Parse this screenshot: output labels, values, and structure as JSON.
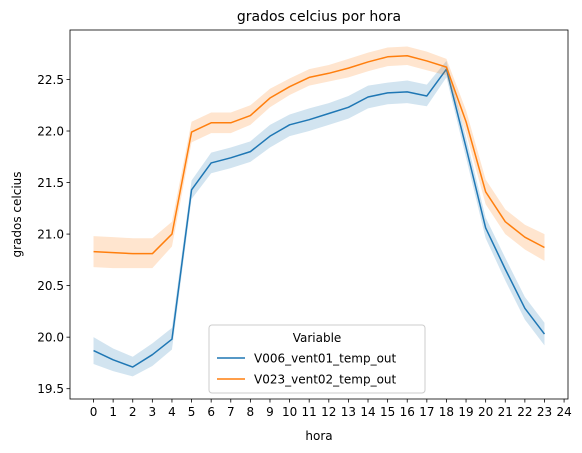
{
  "chart_data": {
    "type": "line",
    "title": "grados celcius por hora",
    "xlabel": "hora",
    "ylabel": "grados celcius",
    "xlim": [
      -1.2,
      24.2
    ],
    "ylim": [
      19.4,
      22.98
    ],
    "x_ticks": [
      "0",
      "1",
      "2",
      "3",
      "4",
      "5",
      "6",
      "7",
      "8",
      "9",
      "10",
      "11",
      "12",
      "13",
      "14",
      "15",
      "16",
      "17",
      "18",
      "19",
      "20",
      "21",
      "22",
      "23",
      "24"
    ],
    "y_ticks": [
      "19.5",
      "20.0",
      "20.5",
      "21.0",
      "21.5",
      "22.0",
      "22.5"
    ],
    "grid": false,
    "legend": {
      "title": "Variable",
      "placement": "lower-center"
    },
    "series": [
      {
        "name": "V006_vent01_temp_out",
        "color": "#1f77b4",
        "x": [
          0,
          1,
          2,
          3,
          4,
          5,
          6,
          7,
          8,
          9,
          10,
          11,
          12,
          13,
          14,
          15,
          16,
          17,
          18,
          19,
          20,
          21,
          22,
          23
        ],
        "values": [
          19.87,
          19.78,
          19.71,
          19.83,
          19.98,
          21.43,
          21.69,
          21.74,
          21.8,
          21.95,
          22.06,
          22.11,
          22.17,
          22.23,
          22.33,
          22.37,
          22.38,
          22.34,
          22.6,
          21.84,
          21.06,
          20.66,
          20.28,
          20.03
        ],
        "ci_low": [
          19.74,
          19.67,
          19.62,
          19.72,
          19.88,
          21.34,
          21.59,
          21.64,
          21.7,
          21.84,
          21.95,
          22.0,
          22.06,
          22.12,
          22.22,
          22.26,
          22.27,
          22.24,
          22.52,
          21.74,
          20.96,
          20.55,
          20.17,
          19.92
        ],
        "ci_high": [
          20.0,
          19.89,
          19.81,
          19.94,
          20.09,
          21.52,
          21.79,
          21.84,
          21.9,
          22.06,
          22.16,
          22.22,
          22.27,
          22.34,
          22.44,
          22.47,
          22.49,
          22.45,
          22.68,
          21.94,
          21.16,
          20.77,
          20.39,
          20.14
        ]
      },
      {
        "name": "V023_vent02_temp_out",
        "color": "#ff7f0e",
        "x": [
          0,
          1,
          2,
          3,
          4,
          5,
          6,
          7,
          8,
          9,
          10,
          11,
          12,
          13,
          14,
          15,
          16,
          17,
          18,
          19,
          20,
          21,
          22,
          23
        ],
        "values": [
          20.83,
          20.82,
          20.81,
          20.81,
          21.0,
          21.99,
          22.08,
          22.08,
          22.15,
          22.32,
          22.43,
          22.52,
          22.56,
          22.61,
          22.67,
          22.72,
          22.73,
          22.68,
          22.62,
          22.09,
          21.41,
          21.12,
          20.97,
          20.87
        ],
        "ci_low": [
          20.68,
          20.67,
          20.67,
          20.67,
          20.88,
          21.89,
          21.98,
          21.98,
          22.06,
          22.23,
          22.35,
          22.44,
          22.48,
          22.52,
          22.58,
          22.63,
          22.64,
          22.59,
          22.54,
          21.98,
          21.29,
          21.0,
          20.85,
          20.74
        ],
        "ci_high": [
          20.98,
          20.97,
          20.96,
          20.96,
          21.12,
          22.09,
          22.18,
          22.18,
          22.25,
          22.41,
          22.51,
          22.6,
          22.64,
          22.7,
          22.76,
          22.81,
          22.82,
          22.77,
          22.7,
          22.2,
          21.53,
          21.24,
          21.09,
          21.0
        ]
      }
    ]
  }
}
